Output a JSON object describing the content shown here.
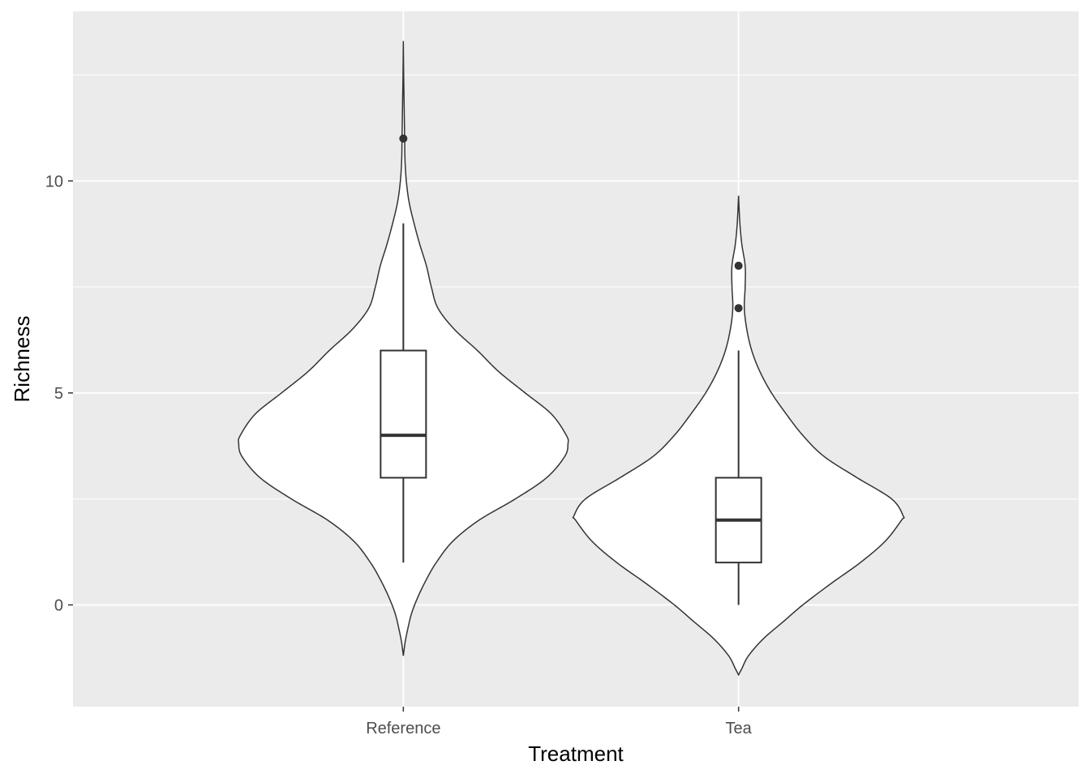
{
  "chart_data": {
    "type": "violin",
    "title": "",
    "xlabel": "Treatment",
    "ylabel": "Richness",
    "categories": [
      "Reference",
      "Tea"
    ],
    "ylim": [
      -2.4,
      14.0
    ],
    "y_ticks": [
      0,
      5,
      10
    ],
    "y_tick_labels": [
      "0",
      "5",
      "10"
    ],
    "grid": true,
    "legend": "none",
    "colors": {
      "panel_background": "#EBEBEB",
      "grid": "#FFFFFF",
      "violin_fill": "#FFFFFF",
      "outline": "#333333"
    },
    "violins": [
      {
        "category": "Reference",
        "boxplot": {
          "lower_whisker": 1,
          "q1": 3,
          "median": 4,
          "q3": 6,
          "upper_whisker": 9
        },
        "outliers": [
          11
        ],
        "density_profile": [
          [
            -1.2,
            0.0
          ],
          [
            -0.9,
            0.01
          ],
          [
            -0.6,
            0.025
          ],
          [
            -0.2,
            0.05
          ],
          [
            0.2,
            0.09
          ],
          [
            0.6,
            0.14
          ],
          [
            1.0,
            0.2
          ],
          [
            1.5,
            0.3
          ],
          [
            2.0,
            0.46
          ],
          [
            2.5,
            0.68
          ],
          [
            3.0,
            0.87
          ],
          [
            3.5,
            0.98
          ],
          [
            3.8,
            1.0
          ],
          [
            4.0,
            0.99
          ],
          [
            4.5,
            0.9
          ],
          [
            5.0,
            0.74
          ],
          [
            5.5,
            0.58
          ],
          [
            6.0,
            0.45
          ],
          [
            6.5,
            0.31
          ],
          [
            7.0,
            0.21
          ],
          [
            7.5,
            0.17
          ],
          [
            8.0,
            0.14
          ],
          [
            8.5,
            0.1
          ],
          [
            9.0,
            0.065
          ],
          [
            9.5,
            0.035
          ],
          [
            10.0,
            0.018
          ],
          [
            10.5,
            0.01
          ],
          [
            11.0,
            0.008
          ],
          [
            11.5,
            0.006
          ],
          [
            12.0,
            0.004
          ],
          [
            12.5,
            0.002
          ],
          [
            13.3,
            0.0
          ]
        ]
      },
      {
        "category": "Tea",
        "boxplot": {
          "lower_whisker": 0,
          "q1": 1,
          "median": 2,
          "q3": 3,
          "upper_whisker": 6
        },
        "outliers": [
          7,
          8
        ],
        "density_profile": [
          [
            -1.65,
            0.0
          ],
          [
            -1.5,
            0.02
          ],
          [
            -1.2,
            0.06
          ],
          [
            -0.8,
            0.15
          ],
          [
            -0.4,
            0.27
          ],
          [
            0.0,
            0.39
          ],
          [
            0.5,
            0.56
          ],
          [
            1.0,
            0.74
          ],
          [
            1.5,
            0.89
          ],
          [
            2.0,
            0.99
          ],
          [
            2.1,
            1.0
          ],
          [
            2.5,
            0.93
          ],
          [
            3.0,
            0.72
          ],
          [
            3.5,
            0.52
          ],
          [
            4.0,
            0.39
          ],
          [
            4.5,
            0.29
          ],
          [
            5.0,
            0.2
          ],
          [
            5.5,
            0.13
          ],
          [
            6.0,
            0.08
          ],
          [
            6.5,
            0.05
          ],
          [
            7.0,
            0.035
          ],
          [
            7.5,
            0.04
          ],
          [
            8.0,
            0.04
          ],
          [
            8.5,
            0.02
          ],
          [
            9.0,
            0.008
          ],
          [
            9.65,
            0.0
          ]
        ]
      }
    ]
  }
}
